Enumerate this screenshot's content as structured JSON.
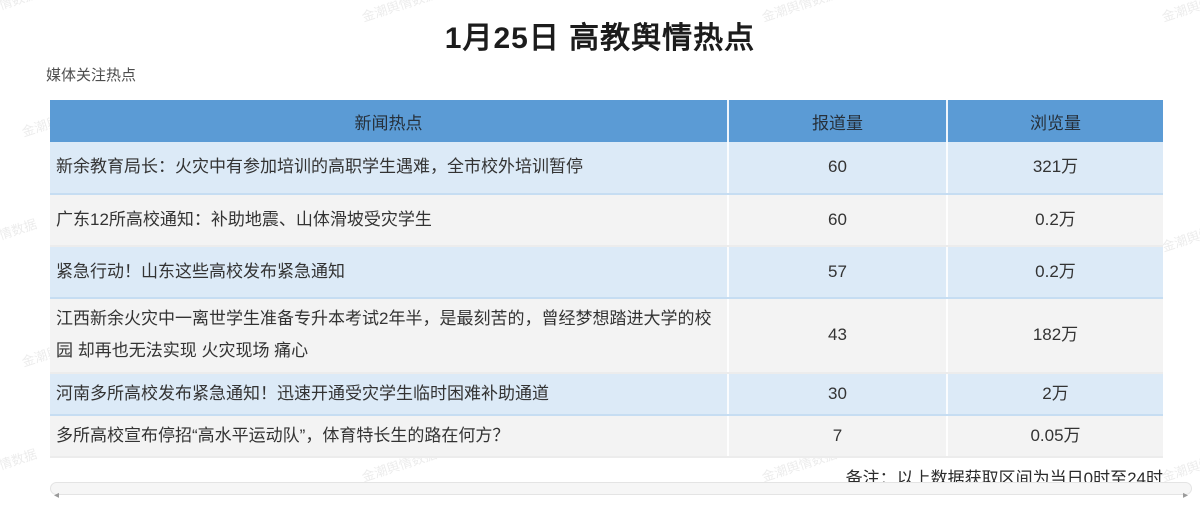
{
  "page": {
    "watermark_text": "金潮舆情数据"
  },
  "chart_data": {
    "type": "table",
    "title": "1月25日 高教舆情热点",
    "section_label": "媒体关注热点",
    "columns": [
      "新闻热点",
      "报道量",
      "浏览量"
    ],
    "rows": [
      {
        "title": "新余教育局长：火灾中有参加培训的高职学生遇难，全市校外培训暂停",
        "reports": "60",
        "views": "321万"
      },
      {
        "title": "广东12所高校通知：补助地震、山体滑坡受灾学生",
        "reports": "60",
        "views": "0.2万"
      },
      {
        "title": "紧急行动！山东这些高校发布紧急通知",
        "reports": "57",
        "views": "0.2万"
      },
      {
        "title": "江西新余火灾中一离世学生准备专升本考试2年半，是最刻苦的，曾经梦想踏进大学的校园 却再也无法实现 火灾现场 痛心",
        "reports": "43",
        "views": "182万"
      },
      {
        "title": "河南多所高校发布紧急通知！迅速开通受灾学生临时困难补助通道",
        "reports": "30",
        "views": "2万"
      },
      {
        "title": "多所高校宣布停招“高水平运动队”，体育特长生的路在何方？",
        "reports": "7",
        "views": "0.05万"
      }
    ],
    "note": "备注：以上数据获取区间为当日0时至24时",
    "layout": {
      "legend": "none",
      "grid": "off"
    }
  },
  "colors": {
    "header_bg": "#5B9BD5",
    "row_alt_blue": "#DCEAF7",
    "row_alt_gray": "#F3F3F3",
    "body_text": "#333333"
  },
  "scrollbar": {
    "left_arrow": "◂",
    "right_arrow": "▸"
  }
}
